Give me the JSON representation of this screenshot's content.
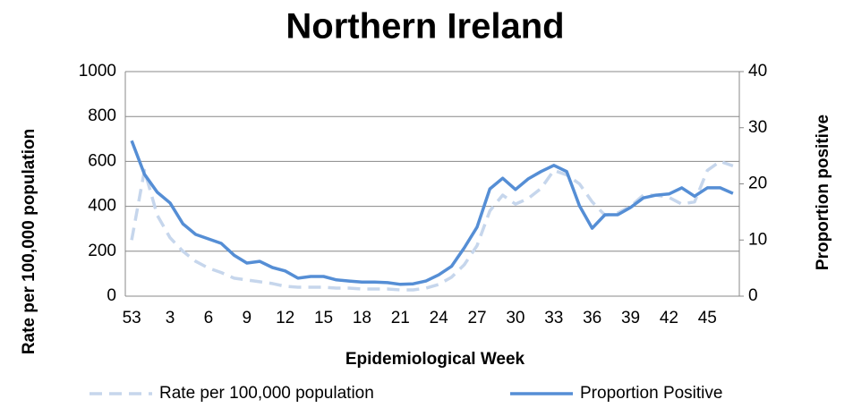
{
  "chart_data": {
    "type": "line",
    "title": "Northern Ireland",
    "x_label": "Epidemiological Week",
    "y_label": "Rate per 100,000 population",
    "y2_label": "Proportion positive",
    "categories": [
      53,
      null,
      null,
      3,
      null,
      null,
      6,
      null,
      null,
      9,
      null,
      null,
      12,
      null,
      null,
      15,
      null,
      null,
      18,
      null,
      null,
      21,
      null,
      null,
      24,
      null,
      null,
      27,
      null,
      null,
      30,
      null,
      null,
      33,
      null,
      null,
      36,
      null,
      null,
      39,
      null,
      null,
      42,
      null,
      null,
      45,
      null,
      null
    ],
    "ylim": [
      0,
      1000
    ],
    "yticks": [
      0,
      200,
      400,
      600,
      800,
      1000
    ],
    "y2lim": [
      0,
      40
    ],
    "y2ticks": [
      0,
      10,
      20,
      30,
      40
    ],
    "grid": true,
    "legend": "bottom",
    "series": [
      {
        "name": "Rate per 100,000 population",
        "color": "#c6d6ec",
        "dashed": true,
        "values": [
          250,
          560,
          360,
          260,
          200,
          155,
          125,
          105,
          80,
          72,
          64,
          56,
          44,
          40,
          40,
          40,
          36,
          36,
          32,
          32,
          32,
          28,
          28,
          36,
          52,
          84,
          140,
          225,
          380,
          450,
          410,
          435,
          480,
          560,
          540,
          500,
          420,
          360,
          370,
          400,
          450,
          450,
          440,
          410,
          420,
          560,
          600,
          580
        ]
      },
      {
        "name": "Proportion Positive",
        "color": "#558ed5",
        "axis": "y2",
        "values": [
          27.7,
          21.7,
          18.5,
          16.6,
          12.9,
          11.0,
          10.2,
          9.4,
          7.3,
          5.9,
          6.2,
          5.1,
          4.5,
          3.2,
          3.5,
          3.5,
          2.9,
          2.7,
          2.5,
          2.5,
          2.4,
          2.1,
          2.2,
          2.7,
          3.8,
          5.3,
          8.6,
          12.3,
          19.1,
          21.0,
          19.0,
          20.9,
          22.2,
          23.3,
          22.2,
          16.1,
          12.1,
          14.5,
          14.5,
          15.8,
          17.5,
          18.0,
          18.2,
          19.3,
          17.8,
          19.3,
          19.3,
          18.3
        ]
      }
    ]
  }
}
